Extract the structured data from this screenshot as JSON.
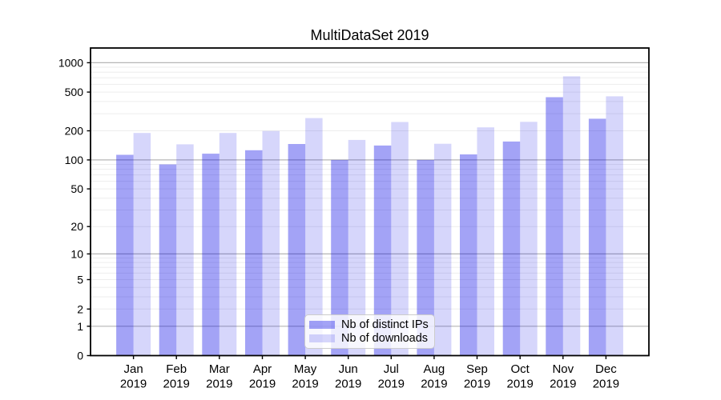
{
  "title": "MultiDataSet 2019",
  "chart_data": {
    "type": "bar",
    "title": "MultiDataSet 2019",
    "categories": [
      "Jan",
      "Feb",
      "Mar",
      "Apr",
      "May",
      "Jun",
      "Jul",
      "Aug",
      "Sep",
      "Oct",
      "Nov",
      "Dec"
    ],
    "category_year": "2019",
    "series": [
      {
        "name": "Nb of distinct IPs",
        "color": "rgba(0,0,230,0.36)",
        "values": [
          113,
          90,
          116,
          126,
          146,
          100,
          141,
          100,
          114,
          155,
          443,
          266
        ]
      },
      {
        "name": "Nb of downloads",
        "color": "rgba(0,0,230,0.16)",
        "values": [
          190,
          145,
          190,
          199,
          270,
          161,
          246,
          147,
          217,
          247,
          725,
          452
        ]
      }
    ],
    "yscale": "symlog",
    "ytick_values": [
      0,
      1,
      2,
      5,
      10,
      20,
      50,
      100,
      200,
      500,
      1000
    ],
    "ylim": [
      0,
      1415
    ],
    "grid": "horizontal major and log-minor gridlines",
    "legend_position": "lower center",
    "colors": {
      "major_grid": "#b5b5b5",
      "minor_grid": "#ededed",
      "spine": "#000000",
      "tick": "#000000",
      "text": "#000000",
      "background": "#ffffff"
    }
  }
}
